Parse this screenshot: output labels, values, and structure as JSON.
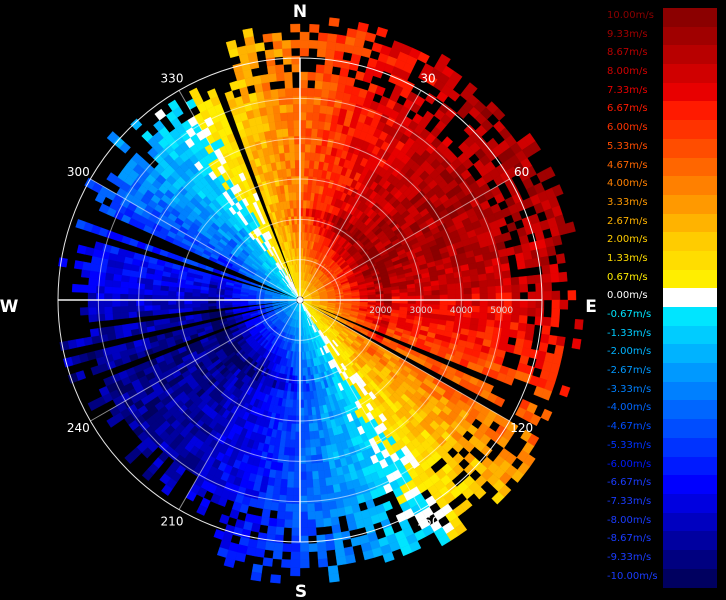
{
  "chart_data": {
    "type": "polar-ppi",
    "compass": {
      "north": "N",
      "east": "E",
      "south": "S",
      "west": "W"
    },
    "azimuth_labels": [
      "30",
      "60",
      "120",
      "150",
      "210",
      "240",
      "300",
      "330"
    ],
    "range_labels": [
      "2000",
      "3000",
      "4000",
      "5000"
    ],
    "unit": "m/s",
    "colorbar": [
      {
        "label": "10.00m/s",
        "color": "#8b0000"
      },
      {
        "label": "9.33m/s",
        "color": "#a00000"
      },
      {
        "label": "8.67m/s",
        "color": "#b80000"
      },
      {
        "label": "8.00m/s",
        "color": "#d00000"
      },
      {
        "label": "7.33m/s",
        "color": "#e80000"
      },
      {
        "label": "6.67m/s",
        "color": "#ff1a00"
      },
      {
        "label": "6.00m/s",
        "color": "#ff3300"
      },
      {
        "label": "5.33m/s",
        "color": "#ff4d00"
      },
      {
        "label": "4.67m/s",
        "color": "#ff6600"
      },
      {
        "label": "4.00m/s",
        "color": "#ff8000"
      },
      {
        "label": "3.33m/s",
        "color": "#ff9900"
      },
      {
        "label": "2.67m/s",
        "color": "#ffb300"
      },
      {
        "label": "2.00m/s",
        "color": "#ffcc00"
      },
      {
        "label": "1.33m/s",
        "color": "#ffdd00"
      },
      {
        "label": "0.67m/s",
        "color": "#ffee00"
      },
      {
        "label": "0.00m/s",
        "color": "#ffffff"
      },
      {
        "label": "-0.67m/s",
        "color": "#00e5ff"
      },
      {
        "label": "-1.33m/s",
        "color": "#00ccff"
      },
      {
        "label": "-2.00m/s",
        "color": "#00b3ff"
      },
      {
        "label": "-2.67m/s",
        "color": "#0099ff"
      },
      {
        "label": "-3.33m/s",
        "color": "#0080ff"
      },
      {
        "label": "-4.00m/s",
        "color": "#0066ff"
      },
      {
        "label": "-4.67m/s",
        "color": "#004dff"
      },
      {
        "label": "-5.33m/s",
        "color": "#0033ff"
      },
      {
        "label": "-6.00m/s",
        "color": "#001aff"
      },
      {
        "label": "-6.67m/s",
        "color": "#0000ff"
      },
      {
        "label": "-7.33m/s",
        "color": "#0000e0"
      },
      {
        "label": "-8.00m/s",
        "color": "#0000c0"
      },
      {
        "label": "-8.67m/s",
        "color": "#0000a0"
      },
      {
        "label": "-9.33m/s",
        "color": "#000080"
      },
      {
        "label": "-10.00m/s",
        "color": "#000060"
      }
    ]
  }
}
